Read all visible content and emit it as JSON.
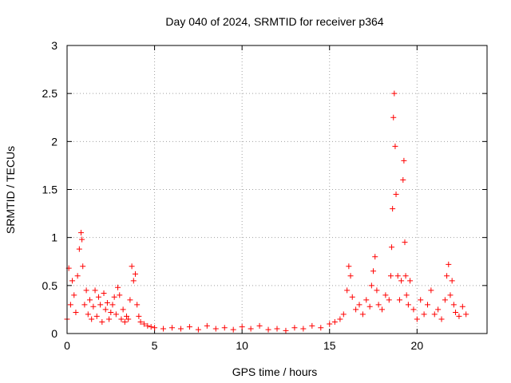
{
  "chart_data": {
    "type": "scatter",
    "title": "Day 040 of 2024, SRMTID for receiver p364",
    "xlabel": "GPS time / hours",
    "ylabel": "SRMTID / TECUs",
    "xlim": [
      0,
      24
    ],
    "ylim": [
      0,
      3
    ],
    "xticks": [
      0,
      5,
      10,
      15,
      20
    ],
    "xtick_labels": [
      "0",
      "5",
      "10",
      "15",
      "20"
    ],
    "yticks": [
      0,
      0.5,
      1,
      1.5,
      2,
      2.5,
      3
    ],
    "ytick_labels": [
      "0",
      "0.5",
      "1",
      "1.5",
      "2",
      "2.5",
      "3"
    ],
    "grid": true,
    "marker": "+",
    "series": [
      {
        "name": "SRMTID",
        "color": "#ff0000",
        "x": [
          0.0,
          0.1,
          0.2,
          0.3,
          0.4,
          0.5,
          0.6,
          0.7,
          0.8,
          0.85,
          0.9,
          1.0,
          1.1,
          1.2,
          1.3,
          1.4,
          1.5,
          1.6,
          1.7,
          1.8,
          1.9,
          2.0,
          2.1,
          2.2,
          2.3,
          2.4,
          2.5,
          2.6,
          2.7,
          2.8,
          2.9,
          3.0,
          3.1,
          3.2,
          3.3,
          3.4,
          3.5,
          3.6,
          3.7,
          3.8,
          3.9,
          4.0,
          4.1,
          4.2,
          4.4,
          4.6,
          4.8,
          5.0,
          5.5,
          6.0,
          6.5,
          7.0,
          7.5,
          8.0,
          8.5,
          9.0,
          9.5,
          10.0,
          10.5,
          11.0,
          11.5,
          12.0,
          12.5,
          13.0,
          13.5,
          14.0,
          14.5,
          15.0,
          15.3,
          15.6,
          15.8,
          16.0,
          16.1,
          16.2,
          16.3,
          16.5,
          16.7,
          16.9,
          17.1,
          17.3,
          17.4,
          17.5,
          17.6,
          17.7,
          17.8,
          18.0,
          18.2,
          18.4,
          18.5,
          18.55,
          18.6,
          18.65,
          18.7,
          18.75,
          18.8,
          18.9,
          19.0,
          19.1,
          19.2,
          19.25,
          19.3,
          19.35,
          19.4,
          19.5,
          19.6,
          19.8,
          20.0,
          20.2,
          20.4,
          20.6,
          20.8,
          21.0,
          21.2,
          21.4,
          21.6,
          21.7,
          21.8,
          21.9,
          22.0,
          22.1,
          22.2,
          22.4,
          22.6,
          22.8
        ],
        "y": [
          0.15,
          0.68,
          0.3,
          0.55,
          0.4,
          0.22,
          0.6,
          0.88,
          1.05,
          0.98,
          0.7,
          0.3,
          0.45,
          0.2,
          0.35,
          0.15,
          0.28,
          0.45,
          0.18,
          0.38,
          0.3,
          0.12,
          0.42,
          0.25,
          0.32,
          0.15,
          0.22,
          0.3,
          0.38,
          0.2,
          0.48,
          0.4,
          0.15,
          0.25,
          0.12,
          0.18,
          0.15,
          0.35,
          0.7,
          0.55,
          0.62,
          0.3,
          0.18,
          0.12,
          0.1,
          0.08,
          0.07,
          0.06,
          0.05,
          0.06,
          0.05,
          0.07,
          0.04,
          0.08,
          0.05,
          0.06,
          0.04,
          0.07,
          0.05,
          0.08,
          0.04,
          0.05,
          0.03,
          0.06,
          0.05,
          0.08,
          0.06,
          0.1,
          0.12,
          0.15,
          0.2,
          0.45,
          0.7,
          0.6,
          0.38,
          0.25,
          0.3,
          0.2,
          0.35,
          0.28,
          0.5,
          0.65,
          0.8,
          0.45,
          0.3,
          0.25,
          0.4,
          0.35,
          0.6,
          0.9,
          1.3,
          2.25,
          2.5,
          1.95,
          1.45,
          0.6,
          0.35,
          0.55,
          1.6,
          1.8,
          0.95,
          0.6,
          0.4,
          0.3,
          0.55,
          0.25,
          0.15,
          0.35,
          0.2,
          0.3,
          0.45,
          0.2,
          0.25,
          0.15,
          0.35,
          0.6,
          0.72,
          0.4,
          0.55,
          0.3,
          0.22,
          0.18,
          0.28,
          0.2
        ]
      }
    ]
  }
}
